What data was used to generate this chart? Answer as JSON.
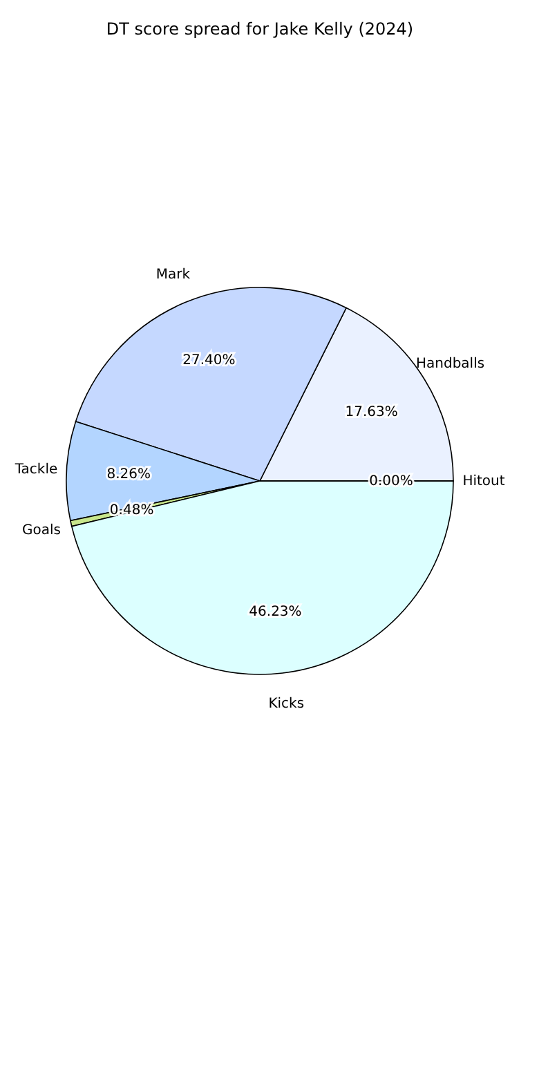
{
  "chart_data": {
    "type": "pie",
    "title": "DT score spread for Jake Kelly (2024)",
    "categories": [
      "Handballs",
      "Mark",
      "Tackle",
      "Goals",
      "Kicks",
      "Hitout"
    ],
    "values": [
      17.63,
      27.4,
      8.26,
      0.48,
      46.23,
      0.0
    ],
    "value_labels": [
      "17.63%",
      "27.40%",
      "8.26%",
      "0.48%",
      "46.23%",
      "0.00%"
    ],
    "colors": [
      "#eaf1ff",
      "#c5d8ff",
      "#b3d5ff",
      "#c8e68c",
      "#dcffff",
      "#d9d9d9"
    ],
    "legend": false
  }
}
